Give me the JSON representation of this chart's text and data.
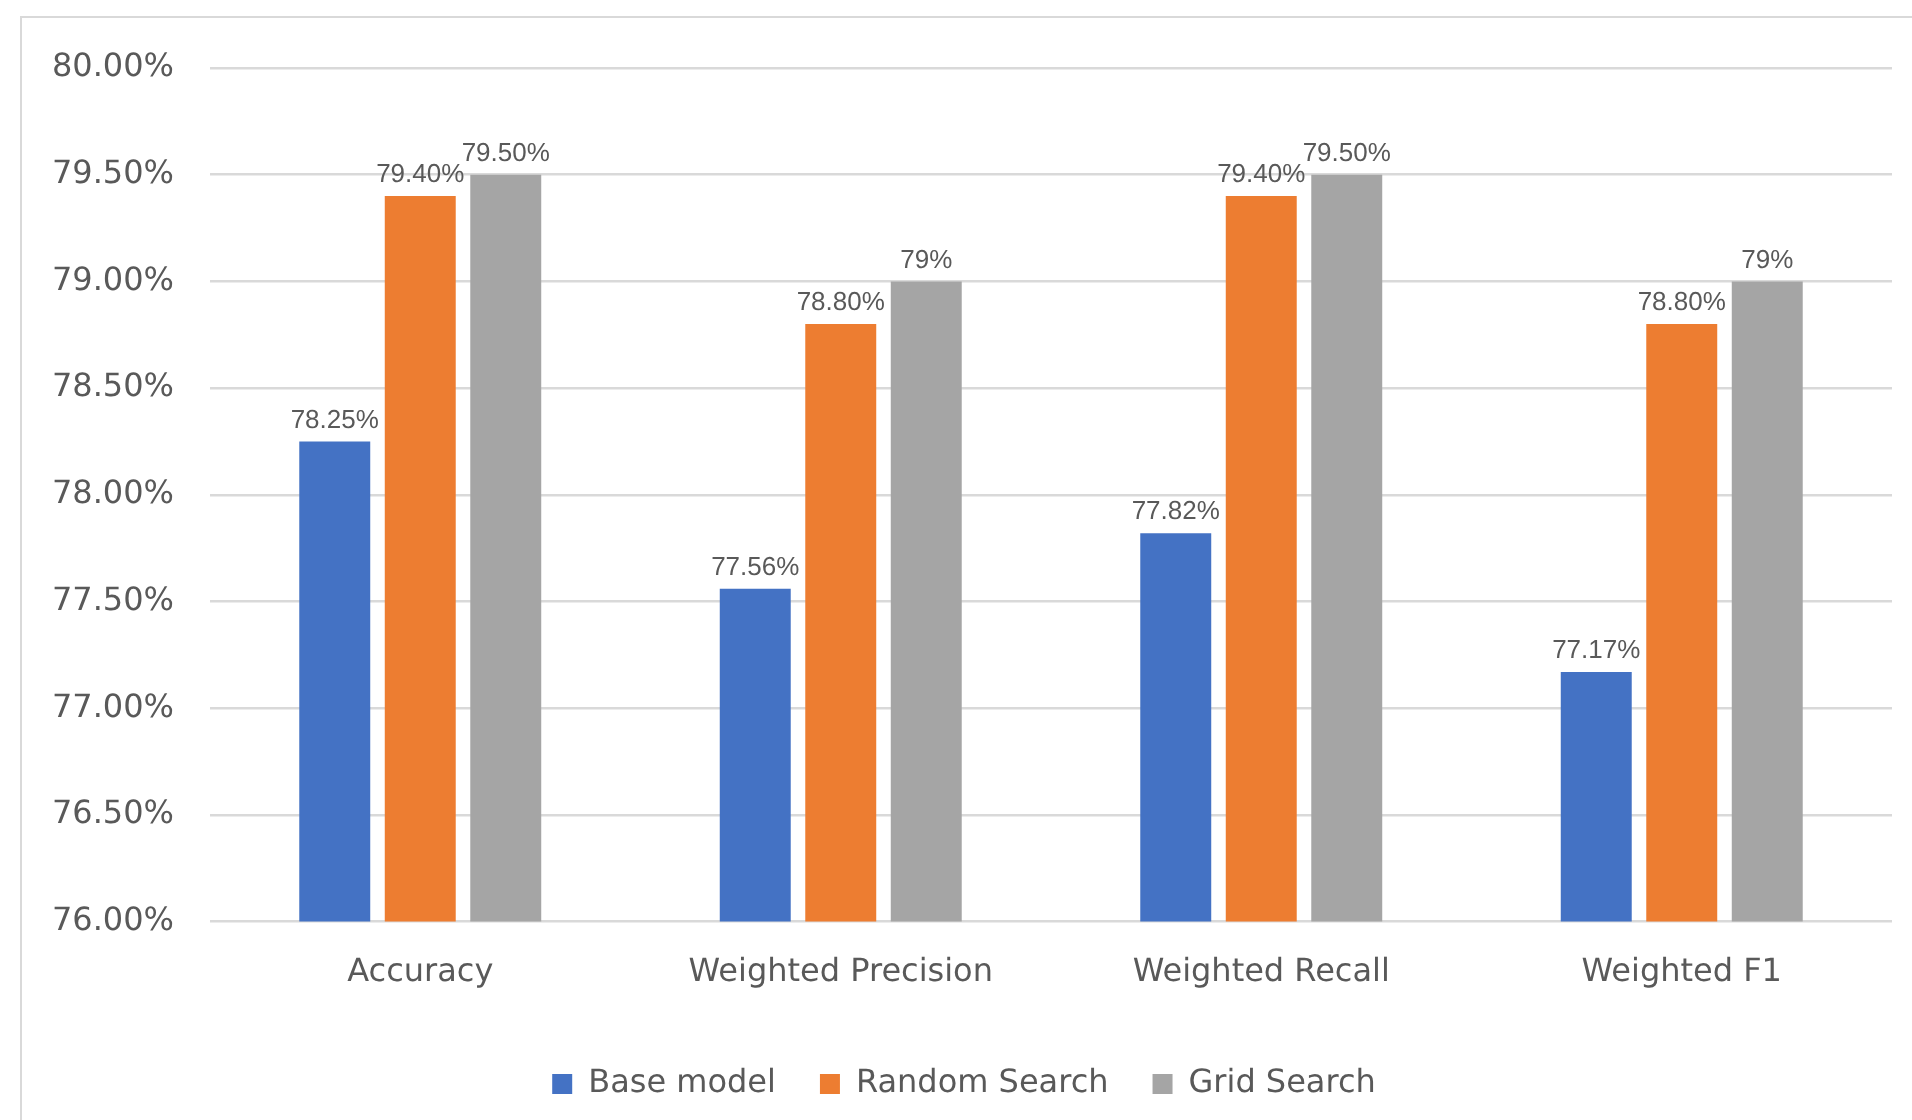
{
  "chart_data": {
    "type": "bar",
    "categories": [
      "Accuracy",
      "Weighted Precision",
      "Weighted Recall",
      "Weighted F1"
    ],
    "series": [
      {
        "name": "Base model",
        "color": "#4472c4",
        "values": [
          78.25,
          77.56,
          77.82,
          77.17
        ],
        "value_labels": [
          "78.25%",
          "77.56%",
          "77.82%",
          "77.17%"
        ]
      },
      {
        "name": "Random Search",
        "color": "#ed7d31",
        "values": [
          79.4,
          78.8,
          79.4,
          78.8
        ],
        "value_labels": [
          "79.40%",
          "78.80%",
          "79.40%",
          "78.80%"
        ]
      },
      {
        "name": "Grid Search",
        "color": "#a5a5a5",
        "values": [
          79.5,
          79,
          79.5,
          79
        ],
        "value_labels": [
          "79.50%",
          "79%",
          "79.50%",
          "79%"
        ]
      }
    ],
    "ylim": [
      76,
      80
    ],
    "yticks": [
      {
        "value": 76,
        "label": "76.00%"
      },
      {
        "value": 76.5,
        "label": "76.50%"
      },
      {
        "value": 77,
        "label": "77.00%"
      },
      {
        "value": 77.5,
        "label": "77.50%"
      },
      {
        "value": 78,
        "label": "78.00%"
      },
      {
        "value": 78.5,
        "label": "78.50%"
      },
      {
        "value": 79,
        "label": "79.00%"
      },
      {
        "value": 79.5,
        "label": "79.50%"
      },
      {
        "value": 80,
        "label": "80.00%"
      }
    ],
    "grid": "y",
    "legend": "bottom"
  }
}
